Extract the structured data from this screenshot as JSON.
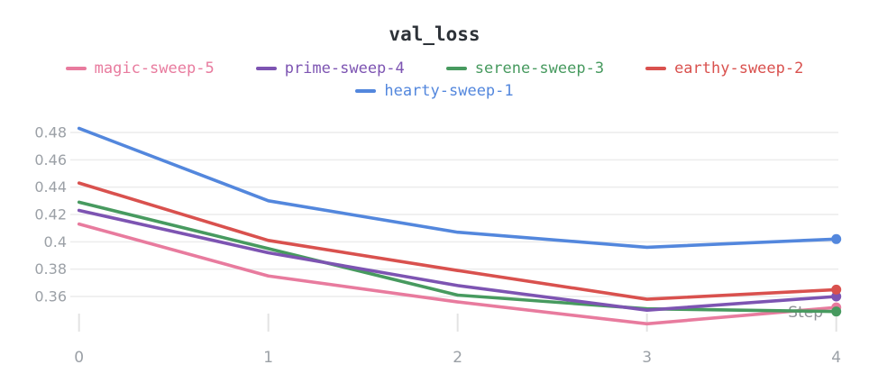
{
  "chart_data": {
    "type": "line",
    "title": "val_loss",
    "xlabel": "Step",
    "ylabel": "",
    "x": [
      0,
      1,
      2,
      3,
      4
    ],
    "x_tick_labels": [
      "0",
      "1",
      "2",
      "3",
      "4"
    ],
    "y_ticks": [
      0.48,
      0.46,
      0.44,
      0.42,
      0.4,
      0.38,
      0.36
    ],
    "y_tick_labels": [
      "0.48",
      "0.46",
      "0.44",
      "0.42",
      "0.4",
      "0.38",
      "0.36"
    ],
    "ylim": [
      0.335,
      0.485
    ],
    "grid": "horizontal",
    "legend_position": "top",
    "series": [
      {
        "name": "magic-sweep-5",
        "color": "#E87B9E",
        "values": [
          0.413,
          0.375,
          0.356,
          0.34,
          0.352
        ]
      },
      {
        "name": "prime-sweep-4",
        "color": "#7D54B2",
        "values": [
          0.423,
          0.392,
          0.368,
          0.35,
          0.36
        ]
      },
      {
        "name": "serene-sweep-3",
        "color": "#479A5F",
        "values": [
          0.429,
          0.395,
          0.361,
          0.351,
          0.349
        ]
      },
      {
        "name": "earthy-sweep-2",
        "color": "#D9514E",
        "values": [
          0.443,
          0.401,
          0.379,
          0.358,
          0.365
        ]
      },
      {
        "name": "hearty-sweep-1",
        "color": "#5387DD",
        "values": [
          0.483,
          0.43,
          0.407,
          0.396,
          0.402
        ]
      }
    ],
    "marker": "endpoint-dot",
    "axis_text_color": "#9BA0A6",
    "step_label_color": "#8F9297",
    "gridline_color": "#ECECEC",
    "tick_color": "#E3E3E3",
    "title_color": "#2D3238"
  }
}
